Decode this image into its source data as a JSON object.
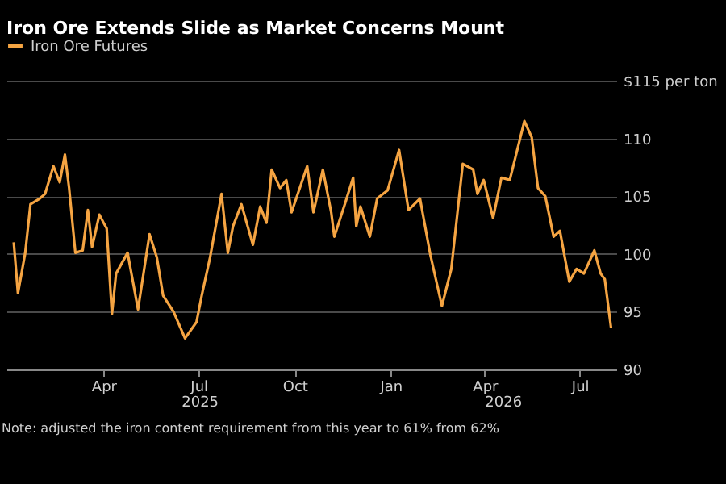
{
  "chart_data": {
    "type": "line",
    "title": "Iron Ore Extends Slide as Market Concerns Mount",
    "x": [
      "2025-01-05",
      "2025-01-09",
      "2025-01-16",
      "2025-01-21",
      "2025-01-30",
      "2025-02-04",
      "2025-02-12",
      "2025-02-18",
      "2025-02-23",
      "2025-02-27",
      "2025-03-05",
      "2025-03-12",
      "2025-03-17",
      "2025-03-21",
      "2025-03-28",
      "2025-04-01",
      "2025-04-04",
      "2025-04-09",
      "2025-04-13",
      "2025-04-24",
      "2025-05-04",
      "2025-05-15",
      "2025-05-22",
      "2025-05-28",
      "2025-06-07",
      "2025-06-18",
      "2025-06-29",
      "2025-07-04",
      "2025-07-12",
      "2025-07-23",
      "2025-07-29",
      "2025-08-03",
      "2025-08-11",
      "2025-08-22",
      "2025-08-29",
      "2025-09-04",
      "2025-09-09",
      "2025-09-17",
      "2025-09-23",
      "2025-09-28",
      "2025-10-13",
      "2025-10-19",
      "2025-10-28",
      "2025-11-05",
      "2025-11-08",
      "2025-11-18",
      "2025-11-26",
      "2025-11-29",
      "2025-12-03",
      "2025-12-12",
      "2025-12-19",
      "2025-12-29",
      "2026-01-09",
      "2026-01-18",
      "2026-01-29",
      "2026-02-08",
      "2026-02-19",
      "2026-02-28",
      "2026-03-11",
      "2026-03-21",
      "2026-03-25",
      "2026-03-31",
      "2026-04-09",
      "2026-04-17",
      "2026-04-25",
      "2026-05-09",
      "2026-05-16",
      "2026-05-22",
      "2026-05-29",
      "2026-06-06",
      "2026-06-12",
      "2026-06-21",
      "2026-06-28",
      "2026-07-05",
      "2026-07-15",
      "2026-07-21",
      "2026-07-25",
      "2026-07-31"
    ],
    "series": [
      {
        "name": "Iron Ore Futures",
        "color": "#f5a442",
        "values": [
          101.0,
          96.6,
          100.1,
          104.3,
          104.8,
          105.2,
          107.6,
          106.2,
          108.6,
          105.7,
          100.1,
          100.3,
          103.8,
          100.6,
          103.4,
          102.7,
          102.2,
          94.8,
          98.3,
          100.1,
          95.2,
          101.7,
          99.7,
          96.4,
          95.0,
          92.7,
          94.1,
          96.4,
          99.7,
          105.2,
          100.1,
          102.4,
          104.3,
          100.8,
          104.1,
          102.7,
          107.3,
          105.7,
          106.4,
          103.6,
          107.6,
          103.6,
          107.3,
          103.6,
          101.5,
          104.3,
          106.6,
          102.4,
          104.1,
          101.5,
          104.8,
          105.5,
          109.0,
          103.8,
          104.8,
          99.9,
          95.5,
          98.7,
          107.8,
          107.3,
          105.2,
          106.4,
          103.1,
          106.6,
          106.4,
          111.5,
          110.1,
          105.7,
          105.0,
          101.5,
          102.0,
          97.6,
          98.7,
          98.3,
          100.3,
          98.3,
          97.8,
          93.6
        ]
      }
    ],
    "xlim": [
      "2024-12-29",
      "2026-08-05"
    ],
    "xticks": [
      {
        "value": "2025-04-01",
        "label": "Apr"
      },
      {
        "value": "2025-07-01",
        "label": "Jul"
      },
      {
        "value": "2025-10-01",
        "label": "Oct"
      },
      {
        "value": "2026-01-01",
        "label": "Jan"
      },
      {
        "value": "2026-04-01",
        "label": "Apr"
      },
      {
        "value": "2026-07-01",
        "label": "Jul"
      }
    ],
    "ylim": [
      90,
      115
    ],
    "yticks": [
      90,
      95,
      100,
      105,
      110,
      {
        "value": 115,
        "label": "$115 per ton"
      }
    ],
    "grid": "y",
    "legend": "top left",
    "annotations": [
      "2025",
      "2026",
      "Note: adjusted the iron content requirement from this year to 61% from 62%"
    ]
  }
}
